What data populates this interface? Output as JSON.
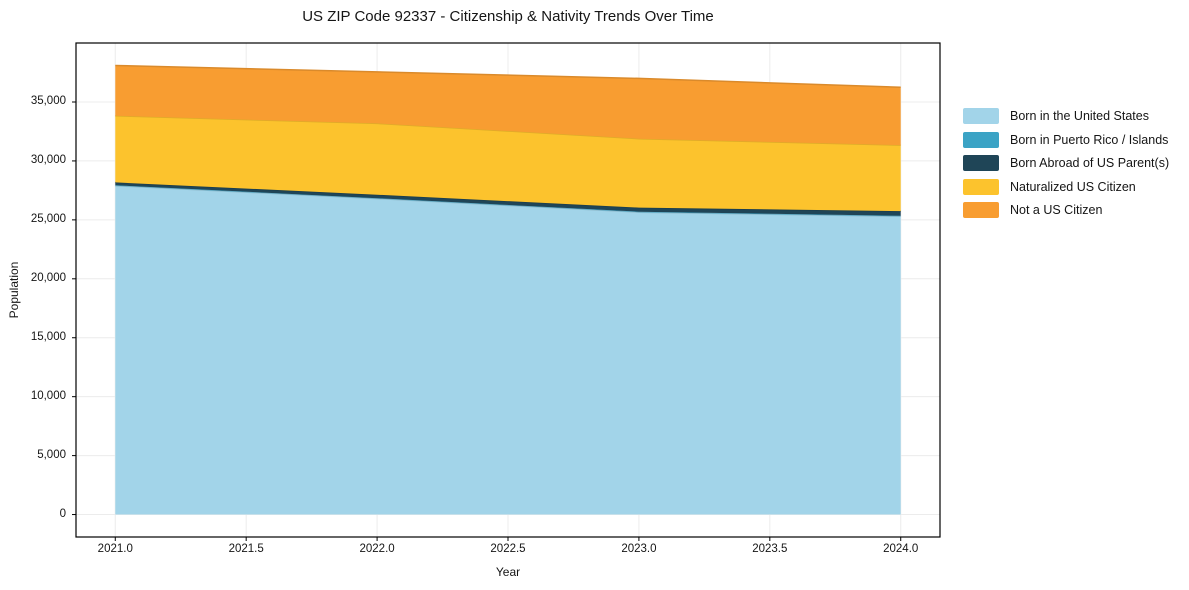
{
  "chart_data": {
    "type": "area",
    "stacked": true,
    "title": "US ZIP Code 92337 - Citizenship & Nativity Trends Over Time",
    "xlabel": "Year",
    "ylabel": "Population",
    "x": [
      2021,
      2022,
      2023,
      2024
    ],
    "series": [
      {
        "name": "Born in the United States",
        "color": "#A2D4E9",
        "values": [
          27900,
          26800,
          25650,
          25300
        ]
      },
      {
        "name": "Born in Puerto Rico / Islands",
        "color": "#3BA3C5",
        "values": [
          30,
          35,
          40,
          45
        ]
      },
      {
        "name": "Born Abroad of US Parent(s)",
        "color": "#1F4557",
        "values": [
          250,
          300,
          350,
          400
        ]
      },
      {
        "name": "Naturalized US Citizen",
        "color": "#FCC32D",
        "values": [
          5650,
          6050,
          5850,
          5600
        ]
      },
      {
        "name": "Not a US Citizen",
        "color": "#F89D31",
        "values": [
          4270,
          4365,
          5110,
          4905
        ]
      }
    ],
    "totals": [
      38100,
      37550,
      37000,
      36250
    ],
    "xlim": [
      2020.85,
      2024.15
    ],
    "ylim": [
      -1905,
      40005
    ],
    "x_ticks": [
      {
        "value": 2021.0,
        "label": "2021.0"
      },
      {
        "value": 2021.5,
        "label": "2021.5"
      },
      {
        "value": 2022.0,
        "label": "2022.0"
      },
      {
        "value": 2022.5,
        "label": "2022.5"
      },
      {
        "value": 2023.0,
        "label": "2023.0"
      },
      {
        "value": 2023.5,
        "label": "2023.5"
      },
      {
        "value": 2024.0,
        "label": "2024.0"
      }
    ],
    "y_ticks": [
      {
        "value": 0,
        "label": "0"
      },
      {
        "value": 5000,
        "label": "5,000"
      },
      {
        "value": 10000,
        "label": "10,000"
      },
      {
        "value": 15000,
        "label": "15,000"
      },
      {
        "value": 20000,
        "label": "20,000"
      },
      {
        "value": 25000,
        "label": "25,000"
      },
      {
        "value": 30000,
        "label": "30,000"
      },
      {
        "value": 35000,
        "label": "35,000"
      }
    ],
    "grid": true,
    "grid_color": "#ECECEC",
    "frame_color": "#000000",
    "legend_position": "right"
  }
}
